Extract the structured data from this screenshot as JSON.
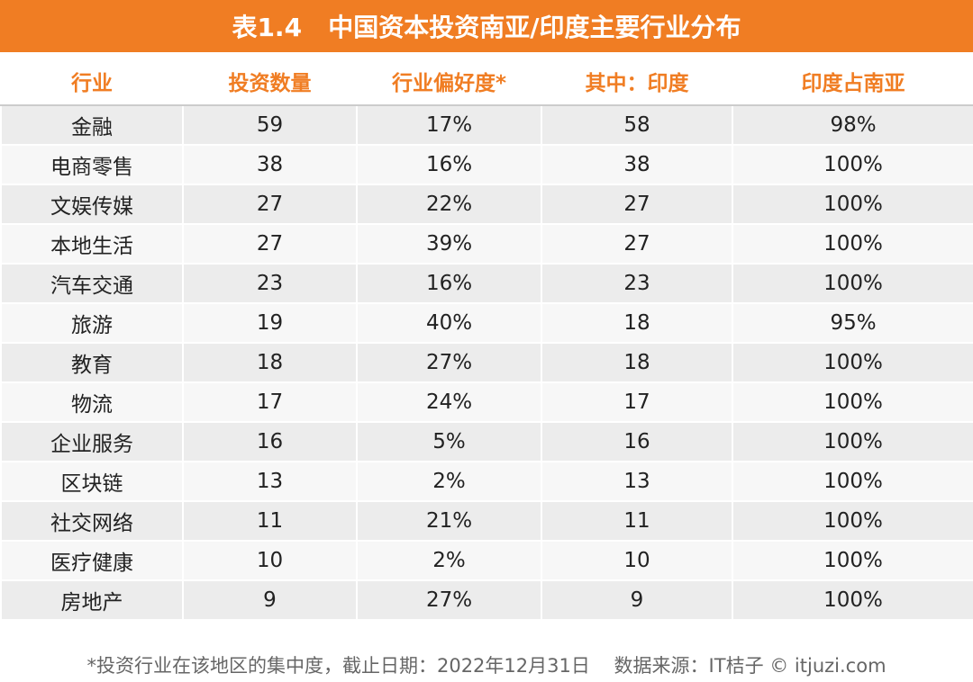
{
  "header": {
    "title": "表1.4   中国资本投资南亚/印度主要行业分布"
  },
  "table": {
    "columns": [
      "行业",
      "投资数量",
      "行业偏好度*",
      "其中：印度",
      "印度占南亚"
    ],
    "rows": [
      [
        "金融",
        "59",
        "17%",
        "58",
        "98%"
      ],
      [
        "电商零售",
        "38",
        "16%",
        "38",
        "100%"
      ],
      [
        "文娱传媒",
        "27",
        "22%",
        "27",
        "100%"
      ],
      [
        "本地生活",
        "27",
        "39%",
        "27",
        "100%"
      ],
      [
        "汽车交通",
        "23",
        "16%",
        "23",
        "100%"
      ],
      [
        "旅游",
        "19",
        "40%",
        "18",
        "95%"
      ],
      [
        "教育",
        "18",
        "27%",
        "18",
        "100%"
      ],
      [
        "物流",
        "17",
        "24%",
        "17",
        "100%"
      ],
      [
        "企业服务",
        "16",
        "5%",
        "16",
        "100%"
      ],
      [
        "区块链",
        "13",
        "2%",
        "13",
        "100%"
      ],
      [
        "社交网络",
        "11",
        "21%",
        "11",
        "100%"
      ],
      [
        "医疗健康",
        "10",
        "2%",
        "10",
        "100%"
      ],
      [
        "房地产",
        "9",
        "27%",
        "9",
        "100%"
      ]
    ]
  },
  "footer": {
    "note": "*投资行业在该地区的集中度，截止日期：2022年12月31日    数据来源：IT桔子 © itjuzi.com"
  }
}
